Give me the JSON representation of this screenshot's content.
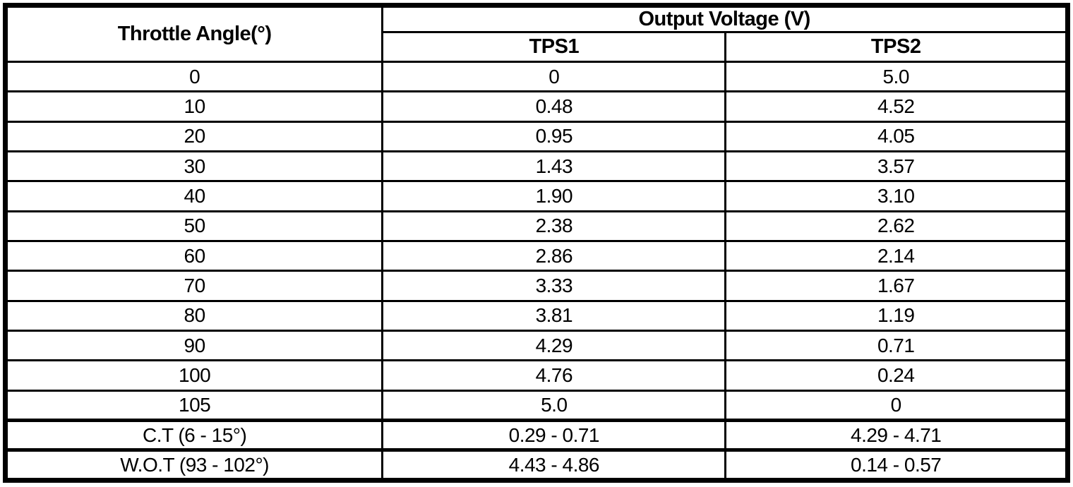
{
  "table": {
    "angle_header": "Throttle Angle(°)",
    "group_header": "Output Voltage (V)",
    "sub_headers": [
      "TPS1",
      "TPS2"
    ],
    "rows": [
      {
        "angle": "0",
        "tps1": "0",
        "tps2": "5.0",
        "thick_top": false
      },
      {
        "angle": "10",
        "tps1": "0.48",
        "tps2": "4.52",
        "thick_top": false
      },
      {
        "angle": "20",
        "tps1": "0.95",
        "tps2": "4.05",
        "thick_top": false
      },
      {
        "angle": "30",
        "tps1": "1.43",
        "tps2": "3.57",
        "thick_top": false
      },
      {
        "angle": "40",
        "tps1": "1.90",
        "tps2": "3.10",
        "thick_top": false
      },
      {
        "angle": "50",
        "tps1": "2.38",
        "tps2": "2.62",
        "thick_top": false
      },
      {
        "angle": "60",
        "tps1": "2.86",
        "tps2": "2.14",
        "thick_top": false
      },
      {
        "angle": "70",
        "tps1": "3.33",
        "tps2": "1.67",
        "thick_top": false
      },
      {
        "angle": "80",
        "tps1": "3.81",
        "tps2": "1.19",
        "thick_top": false
      },
      {
        "angle": "90",
        "tps1": "4.29",
        "tps2": "0.71",
        "thick_top": false
      },
      {
        "angle": "100",
        "tps1": "4.76",
        "tps2": "0.24",
        "thick_top": false
      },
      {
        "angle": "105",
        "tps1": "5.0",
        "tps2": "0",
        "thick_top": false
      },
      {
        "angle": "C.T (6 - 15°)",
        "tps1": "0.29 - 0.71",
        "tps2": "4.29 - 4.71",
        "thick_top": true
      },
      {
        "angle": "W.O.T (93 - 102°)",
        "tps1": "4.43 - 4.86",
        "tps2": "0.14 - 0.57",
        "thick_top": true
      }
    ],
    "colors": {
      "border": "#000000",
      "text": "#000000",
      "background": "#ffffff"
    }
  }
}
